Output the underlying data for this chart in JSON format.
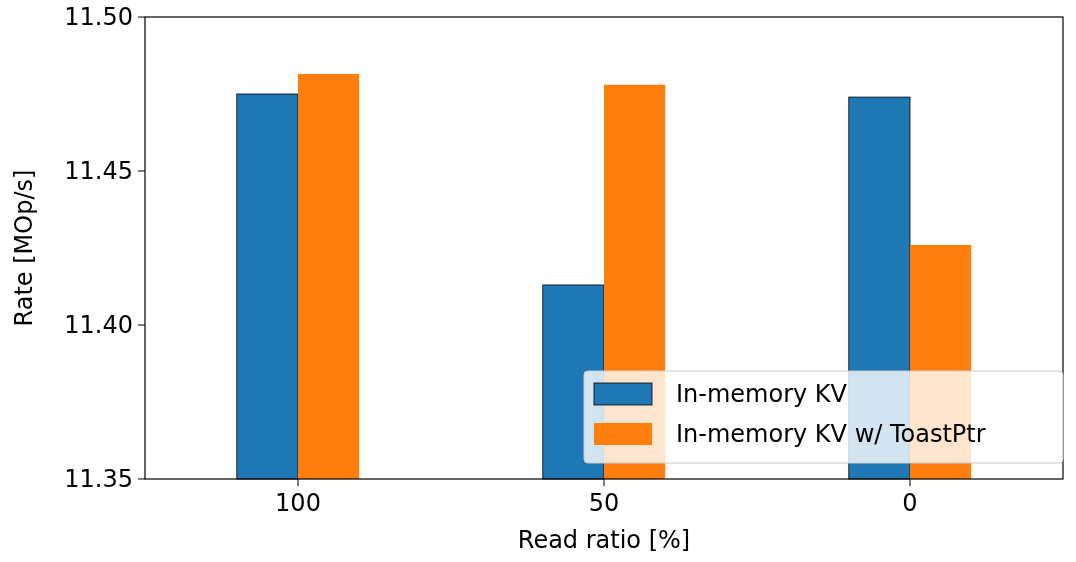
{
  "chart_data": {
    "type": "bar",
    "xlabel": "Read ratio [%]",
    "ylabel": "Rate [MOp/s]",
    "categories": [
      "100",
      "50",
      "0"
    ],
    "series": [
      {
        "name": "In-memory KV",
        "color": "#1f77b4",
        "values": [
          11.475,
          11.413,
          11.474
        ]
      },
      {
        "name": "In-memory KV w/ ToastPtr",
        "color": "#ff7f0e",
        "values": [
          11.4815,
          11.478,
          11.426
        ]
      }
    ],
    "ylim": [
      11.35,
      11.5
    ],
    "yticks": [
      {
        "value": 11.35,
        "label": "11.35"
      },
      {
        "value": 11.4,
        "label": "11.40"
      },
      {
        "value": 11.45,
        "label": "11.45"
      },
      {
        "value": 11.5,
        "label": "11.50"
      }
    ],
    "legend": "bottom right"
  }
}
